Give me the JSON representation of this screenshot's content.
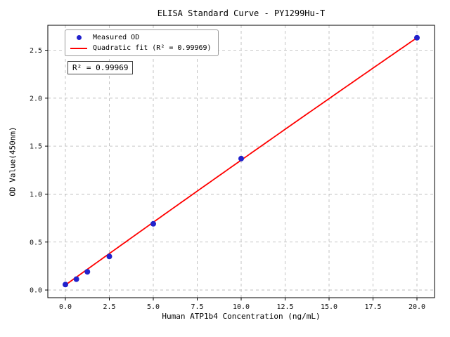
{
  "chart_data": {
    "type": "scatter",
    "title": "ELISA Standard Curve - PY1299Hu-T",
    "xlabel": "Human ATP1b4 Concentration (ng/mL)",
    "ylabel": "OD Value(450nm)",
    "xlim": [
      -1,
      21
    ],
    "ylim": [
      -0.08,
      2.76
    ],
    "x_ticks": [
      0,
      2.5,
      5,
      7.5,
      10,
      12.5,
      15,
      17.5,
      20
    ],
    "x_tick_labels": [
      "0.0",
      "2.5",
      "5.0",
      "7.5",
      "10.0",
      "12.5",
      "15.0",
      "17.5",
      "20.0"
    ],
    "y_ticks": [
      0,
      0.5,
      1,
      1.5,
      2,
      2.5
    ],
    "y_tick_labels": [
      "0.0",
      "0.5",
      "1.0",
      "1.5",
      "2.0",
      "2.5"
    ],
    "grid": true,
    "grid_style": "dashed",
    "legend_position": "upper-left",
    "annotation": "R² = 0.99969",
    "series": [
      {
        "name": "Measured OD",
        "type": "scatter",
        "color": "#2222cc",
        "points": [
          [
            0,
            0.057
          ],
          [
            0.625,
            0.113
          ],
          [
            1.25,
            0.19
          ],
          [
            2.5,
            0.35
          ],
          [
            5,
            0.69
          ],
          [
            10,
            1.37
          ],
          [
            20,
            2.63
          ]
        ]
      },
      {
        "name": "Quadratic fit (R² = 0.99969)",
        "type": "line",
        "color": "#ff0000",
        "fit": {
          "a": 0.052,
          "b": 0.1315,
          "c": -0.00013,
          "x_range": [
            0,
            20
          ]
        }
      }
    ],
    "colors": {
      "grid": "#b5b5b5",
      "frame": "#000000",
      "tick_text": "#111111",
      "background": "#ffffff"
    }
  }
}
